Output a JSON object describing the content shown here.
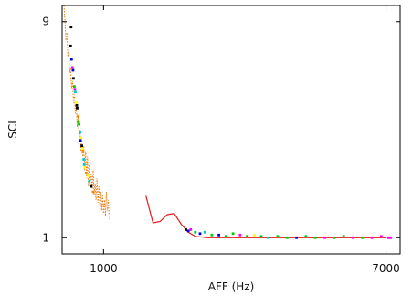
{
  "chart_data": {
    "type": "scatter",
    "title": "",
    "xlabel": "AFF (Hz)",
    "ylabel": "SCI",
    "xlim": [
      120,
      7300
    ],
    "ylim": [
      0.4,
      9.6
    ],
    "xticks": [
      1000,
      7000
    ],
    "yticks": [
      1,
      9
    ],
    "grid": false,
    "legend": "none",
    "colors": {
      "fit_line": "#e41a1c",
      "dotted_series": "#e8801a",
      "scatter_palette": [
        "#000000",
        "#0000ee",
        "#ff00ff",
        "#00cc00",
        "#00cccc",
        "#ffff00",
        "#ff8800",
        "#aaaaaa"
      ]
    },
    "series": [
      {
        "kind": "line",
        "color": "#e41a1c",
        "x": [
          1900,
          2050,
          2200,
          2350,
          2500,
          2650,
          2800,
          2950,
          3200,
          3600,
          4000,
          5000,
          6000,
          7000
        ],
        "y": [
          2.55,
          1.55,
          1.6,
          1.85,
          1.9,
          1.5,
          1.2,
          1.05,
          1.0,
          1.0,
          1.0,
          1.0,
          1.0,
          1.0
        ]
      },
      {
        "kind": "dotted",
        "color": "#e8801a",
        "x": [
          160,
          180,
          200,
          220,
          240,
          260,
          280,
          300,
          320,
          340,
          360,
          380,
          400,
          420,
          440,
          460,
          480,
          500,
          520,
          540,
          560,
          580,
          600,
          620,
          640,
          660,
          680,
          700,
          720,
          740,
          760,
          780,
          800,
          820,
          840,
          860,
          880,
          900,
          920,
          940,
          960,
          980,
          1000,
          1020,
          1040,
          1060,
          1080,
          1100,
          1120
        ],
        "y": [
          9.8,
          9.0,
          8.3,
          8.6,
          7.7,
          7.9,
          7.1,
          7.3,
          6.5,
          6.8,
          6.0,
          6.3,
          5.6,
          5.9,
          5.1,
          5.5,
          4.7,
          5.0,
          4.2,
          4.6,
          4.0,
          4.4,
          3.5,
          4.2,
          3.2,
          4.0,
          2.9,
          3.7,
          3.1,
          3.4,
          2.8,
          3.5,
          2.6,
          3.0,
          2.4,
          3.2,
          2.3,
          2.9,
          2.2,
          2.7,
          2.0,
          2.6,
          1.9,
          2.4,
          1.8,
          2.7,
          2.0,
          2.4,
          1.7
        ]
      },
      {
        "kind": "points",
        "x": [
          300,
          320,
          340,
          360,
          380,
          400,
          420,
          440,
          460,
          480,
          500,
          520,
          540,
          560,
          580,
          600,
          310,
          350,
          390,
          430,
          470,
          510,
          550,
          590,
          630,
          670,
          700,
          740,
          780
        ],
        "y": [
          8.1,
          7.6,
          7.3,
          6.9,
          6.6,
          6.4,
          6.0,
          5.8,
          5.5,
          5.2,
          4.9,
          4.7,
          4.4,
          4.2,
          3.9,
          3.6,
          8.8,
          7.2,
          6.5,
          5.9,
          5.3,
          4.6,
          4.3,
          3.7,
          3.4,
          3.3,
          3.1,
          2.9,
          2.7
        ],
        "c": [
          0,
          1,
          2,
          0,
          3,
          4,
          5,
          0,
          6,
          3,
          4,
          5,
          0,
          6,
          4,
          5,
          0,
          1,
          2,
          0,
          3,
          1,
          5,
          4,
          6,
          5,
          4,
          0,
          6
        ]
      },
      {
        "kind": "points",
        "x": [
          2750,
          2800,
          2850,
          2950,
          3050,
          3150,
          3300,
          3450,
          3600,
          3750,
          3900,
          4050,
          4200,
          4350,
          4500,
          4700,
          4900,
          5100,
          5300,
          5500,
          5700,
          5900,
          6100,
          6300,
          6500,
          6700,
          6900,
          7050,
          7100
        ],
        "y": [
          1.3,
          1.25,
          1.3,
          1.2,
          1.15,
          1.2,
          1.1,
          1.1,
          1.05,
          1.15,
          1.1,
          1.05,
          1.1,
          1.05,
          1.0,
          1.05,
          1.0,
          1.0,
          1.05,
          1.0,
          1.0,
          1.0,
          1.05,
          1.0,
          1.0,
          1.0,
          1.05,
          1.0,
          1.0
        ],
        "c": [
          0,
          1,
          2,
          3,
          1,
          4,
          3,
          1,
          3,
          3,
          2,
          3,
          5,
          3,
          4,
          3,
          3,
          1,
          3,
          3,
          2,
          3,
          3,
          2,
          3,
          2,
          2,
          2,
          2
        ]
      }
    ]
  }
}
